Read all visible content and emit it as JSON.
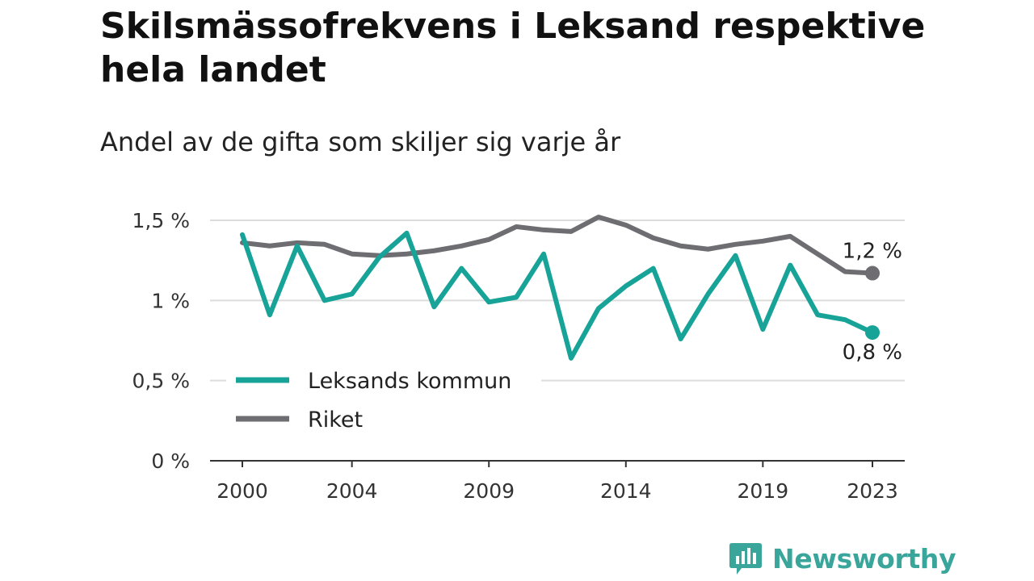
{
  "title": "Skilsmässofrekvens i Leksand respektive hela landet",
  "subtitle": "Andel av de gifta som skiljer sig varje år",
  "brand": {
    "name": "Newsworthy",
    "color": "#3aa69b",
    "icon": "newsworthy-logo-icon"
  },
  "chart_data": {
    "type": "line",
    "title": "Skilsmässofrekvens i Leksand respektive hela landet",
    "subtitle": "Andel av de gifta som skiljer sig varje år",
    "x": [
      2000,
      2001,
      2002,
      2003,
      2004,
      2005,
      2006,
      2007,
      2008,
      2009,
      2010,
      2011,
      2012,
      2013,
      2014,
      2015,
      2016,
      2017,
      2018,
      2019,
      2020,
      2021,
      2022,
      2023
    ],
    "x_ticks": [
      {
        "value": 2000,
        "label": "2000"
      },
      {
        "value": 2004,
        "label": "2004"
      },
      {
        "value": 2009,
        "label": "2009"
      },
      {
        "value": 2014,
        "label": "2014"
      },
      {
        "value": 2019,
        "label": "2019"
      },
      {
        "value": 2023,
        "label": "2023"
      }
    ],
    "y_ticks": [
      {
        "value": 0,
        "label": "0 %"
      },
      {
        "value": 0.5,
        "label": "0,5 %"
      },
      {
        "value": 1.0,
        "label": "1 %"
      },
      {
        "value": 1.5,
        "label": "1,5 %"
      }
    ],
    "ylim": [
      0,
      1.5
    ],
    "grid": true,
    "legend_position": "bottom-left",
    "series": [
      {
        "name": "Leksands kommun",
        "color": "#17a398",
        "values": [
          1.41,
          0.91,
          1.34,
          1.0,
          1.04,
          1.27,
          1.42,
          0.96,
          1.2,
          0.99,
          1.02,
          1.29,
          0.64,
          0.95,
          1.09,
          1.2,
          0.76,
          1.04,
          1.28,
          0.82,
          1.22,
          0.91,
          0.88,
          0.8
        ],
        "end_label": "0,8 %"
      },
      {
        "name": "Riket",
        "color": "#6d6d72",
        "values": [
          1.36,
          1.34,
          1.36,
          1.35,
          1.29,
          1.28,
          1.29,
          1.31,
          1.34,
          1.38,
          1.46,
          1.44,
          1.43,
          1.52,
          1.47,
          1.39,
          1.34,
          1.32,
          1.35,
          1.37,
          1.4,
          1.29,
          1.18,
          1.17
        ],
        "end_label": "1,2 %"
      }
    ]
  }
}
